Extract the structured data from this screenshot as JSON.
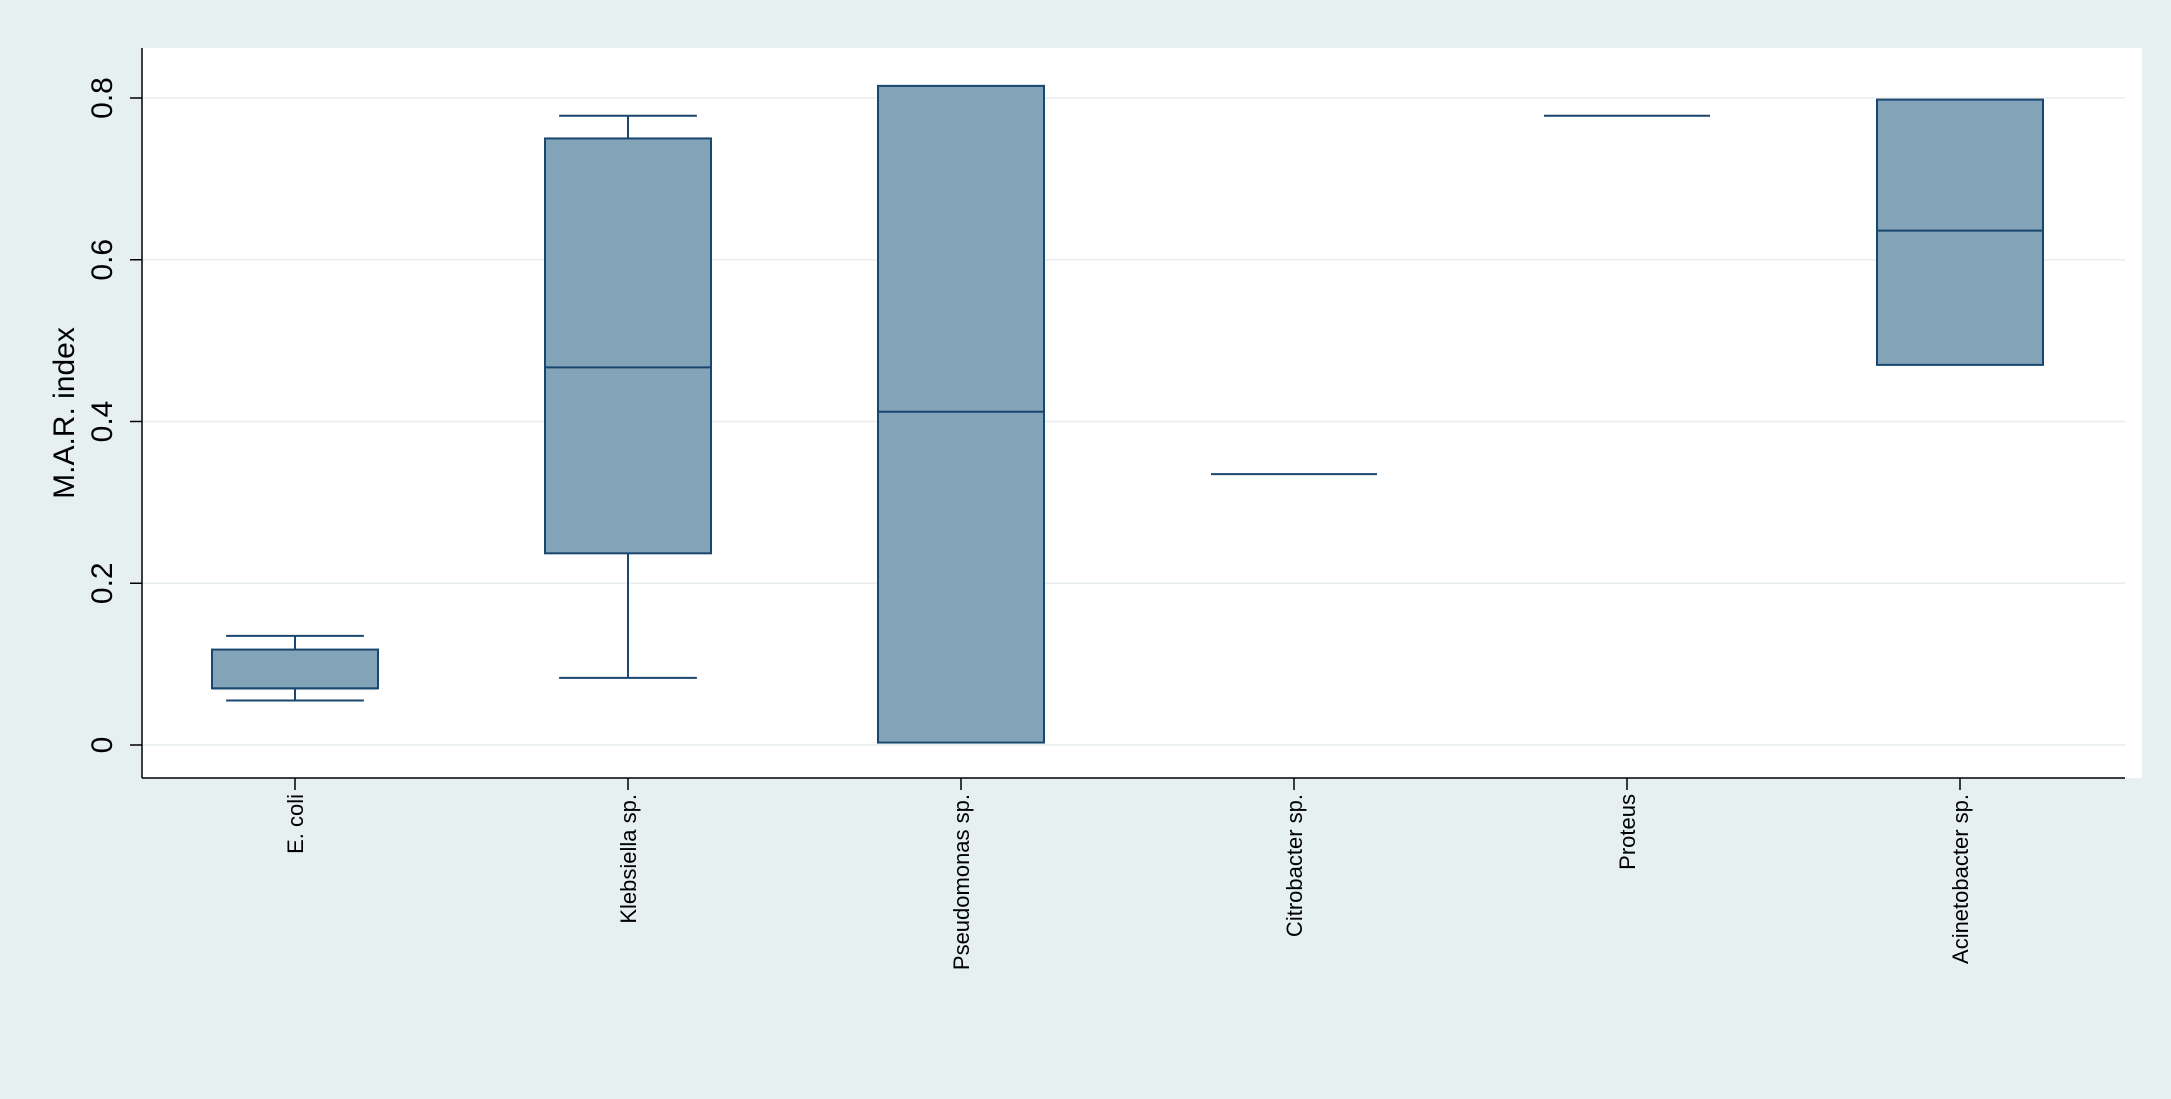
{
  "chart_data": {
    "type": "box",
    "ylabel": "M.A.R. index",
    "xlabel": "",
    "ylim": [
      0,
      0.8
    ],
    "yticks": [
      "0",
      "0.2",
      "0.4",
      "0.6",
      "0.8"
    ],
    "grid": true,
    "categories": [
      "E. coli",
      "Klebsiella sp.",
      "Pseudomonas sp.",
      "Citrobacter sp.",
      "Proteus",
      "Acinetobacter sp."
    ],
    "boxes": [
      {
        "category": "E. coli",
        "whisker_low": 0.055,
        "q1": 0.07,
        "median": 0.07,
        "q3": 0.118,
        "whisker_high": 0.135
      },
      {
        "category": "Klebsiella sp.",
        "whisker_low": 0.083,
        "q1": 0.237,
        "median": 0.467,
        "q3": 0.75,
        "whisker_high": 0.778
      },
      {
        "category": "Pseudomonas sp.",
        "whisker_low": 0.003,
        "q1": 0.003,
        "median": 0.412,
        "q3": 0.815,
        "whisker_high": 0.815
      },
      {
        "category": "Citrobacter sp.",
        "whisker_low": 0.335,
        "q1": 0.335,
        "median": 0.335,
        "q3": 0.335,
        "whisker_high": 0.335
      },
      {
        "category": "Proteus",
        "whisker_low": 0.778,
        "q1": 0.778,
        "median": 0.778,
        "q3": 0.778,
        "whisker_high": 0.778
      },
      {
        "category": "Acinetobacter sp.",
        "whisker_low": 0.47,
        "q1": 0.47,
        "median": 0.636,
        "q3": 0.798,
        "whisker_high": 0.798
      }
    ],
    "colors": {
      "background": "#e6f0f0",
      "plot_area": "#ffffff",
      "box_fill": "#82a3b8",
      "box_line": "#1a476f",
      "grid": "#e6eeee",
      "axis": "#000000"
    }
  }
}
